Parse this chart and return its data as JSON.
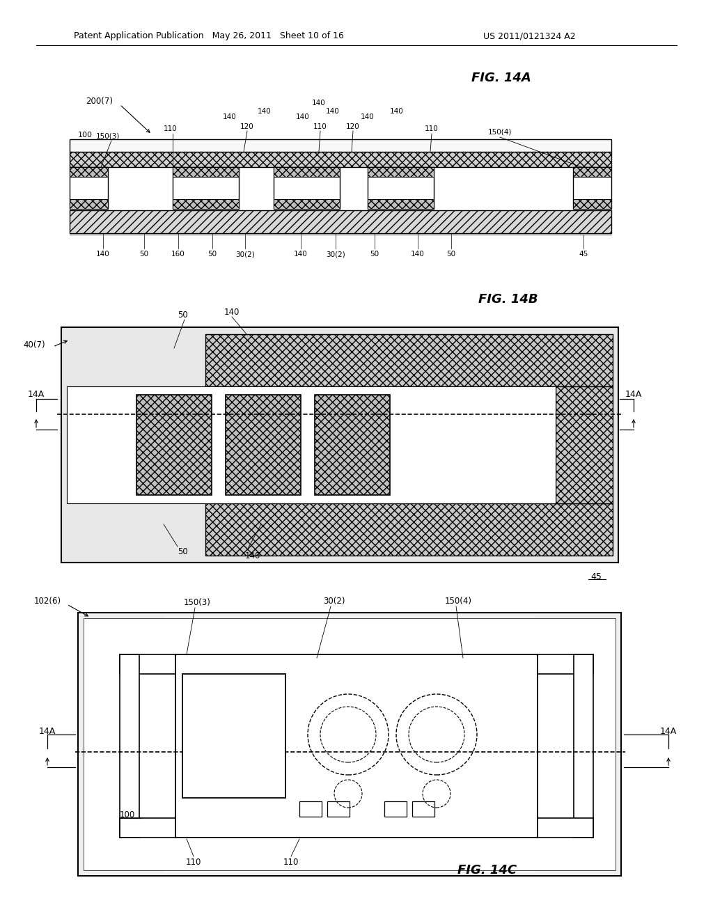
{
  "bg_color": "#ffffff",
  "header_left": "Patent Application Publication   May 26, 2011   Sheet 10 of 16",
  "header_right": "US 2011/0121324 A2",
  "fig14a_label": "FIG. 14A",
  "fig14b_label": "FIG. 14B",
  "fig14c_label": "FIG. 14C",
  "hatch_xxx": "xxx",
  "hatch_diag": "///",
  "gray_light": "#d0d0d0",
  "gray_med": "#b8b8b8",
  "gray_dark": "#999999"
}
